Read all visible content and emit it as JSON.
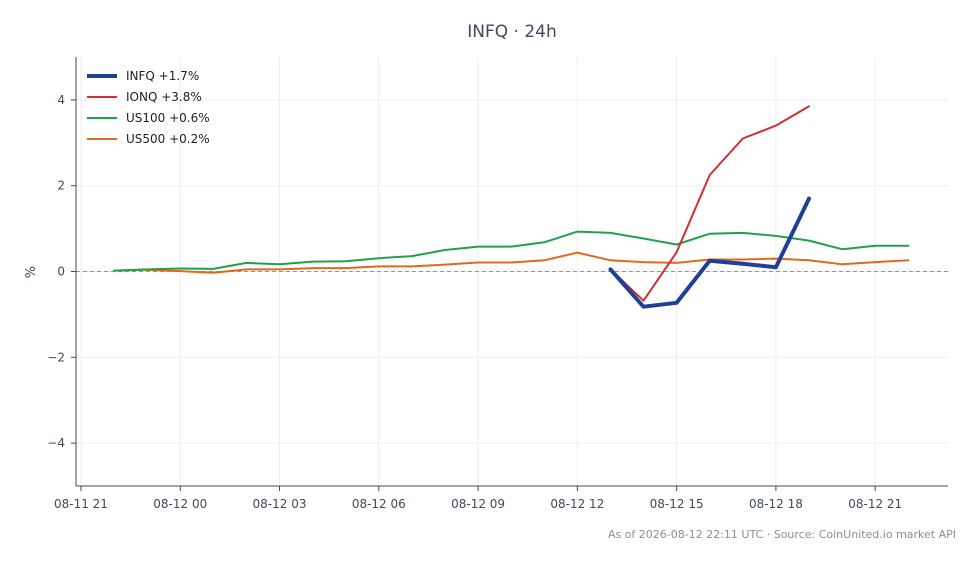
{
  "chart_data": {
    "type": "line",
    "title": "INFQ · 24h",
    "xlabel": "",
    "ylabel": "%",
    "x_unit": "hours since 08-11 21:00",
    "x_ticks": [
      {
        "x": 0,
        "label": "08-11 21"
      },
      {
        "x": 3,
        "label": "08-12 00"
      },
      {
        "x": 6,
        "label": "08-12 03"
      },
      {
        "x": 9,
        "label": "08-12 06"
      },
      {
        "x": 12,
        "label": "08-12 09"
      },
      {
        "x": 15,
        "label": "08-12 12"
      },
      {
        "x": 18,
        "label": "08-12 15"
      },
      {
        "x": 21,
        "label": "08-12 18"
      },
      {
        "x": 24,
        "label": "08-12 21"
      }
    ],
    "y_ticks": [
      {
        "y": -4,
        "label": "−4"
      },
      {
        "y": -2,
        "label": "−2"
      },
      {
        "y": 0,
        "label": "0"
      },
      {
        "y": 2,
        "label": "2"
      },
      {
        "y": 4,
        "label": "4"
      }
    ],
    "xlim": [
      -0.15,
      26.2
    ],
    "ylim": [
      -5.0,
      5.0
    ],
    "grid": true,
    "zero_line": {
      "y": 0,
      "color": "#8a96a8"
    },
    "legend_position": "top-left",
    "series": [
      {
        "name": "INFQ +1.7%",
        "color": "#1f3f99",
        "width": 4,
        "points": [
          [
            16,
            0.05
          ],
          [
            17,
            -0.82
          ],
          [
            18,
            -0.73
          ],
          [
            19,
            0.25
          ],
          [
            20,
            0.18
          ],
          [
            21,
            0.1
          ],
          [
            22,
            1.7
          ]
        ]
      },
      {
        "name": "IONQ +3.8%",
        "color": "#d03030",
        "width": 2,
        "points": [
          [
            16,
            0.05
          ],
          [
            17,
            -0.68
          ],
          [
            18,
            0.45
          ],
          [
            19,
            2.25
          ],
          [
            20,
            3.1
          ],
          [
            21,
            3.4
          ],
          [
            22,
            3.85
          ]
        ]
      },
      {
        "name": "US100 +0.6%",
        "color": "#22a04a",
        "width": 2,
        "points": [
          [
            1,
            0.02
          ],
          [
            2,
            0.05
          ],
          [
            3,
            0.07
          ],
          [
            4,
            0.06
          ],
          [
            5,
            0.2
          ],
          [
            6,
            0.17
          ],
          [
            7,
            0.23
          ],
          [
            8,
            0.24
          ],
          [
            9,
            0.31
          ],
          [
            10,
            0.36
          ],
          [
            11,
            0.5
          ],
          [
            12,
            0.58
          ],
          [
            13,
            0.58
          ],
          [
            14,
            0.68
          ],
          [
            15,
            0.93
          ],
          [
            16,
            0.9
          ],
          [
            17,
            0.77
          ],
          [
            18,
            0.63
          ],
          [
            19,
            0.88
          ],
          [
            20,
            0.9
          ],
          [
            21,
            0.83
          ],
          [
            22,
            0.72
          ],
          [
            23,
            0.52
          ],
          [
            24,
            0.6
          ],
          [
            25,
            0.6
          ]
        ]
      },
      {
        "name": "US500 +0.2%",
        "color": "#e06a1c",
        "width": 2,
        "points": [
          [
            1,
            0.02
          ],
          [
            2,
            0.04
          ],
          [
            3,
            0.01
          ],
          [
            4,
            -0.03
          ],
          [
            5,
            0.05
          ],
          [
            6,
            0.05
          ],
          [
            7,
            0.08
          ],
          [
            8,
            0.08
          ],
          [
            9,
            0.12
          ],
          [
            10,
            0.12
          ],
          [
            11,
            0.16
          ],
          [
            12,
            0.21
          ],
          [
            13,
            0.21
          ],
          [
            14,
            0.26
          ],
          [
            15,
            0.44
          ],
          [
            16,
            0.26
          ],
          [
            17,
            0.22
          ],
          [
            18,
            0.2
          ],
          [
            19,
            0.28
          ],
          [
            20,
            0.28
          ],
          [
            21,
            0.3
          ],
          [
            22,
            0.26
          ],
          [
            23,
            0.17
          ],
          [
            24,
            0.22
          ],
          [
            25,
            0.26
          ]
        ]
      }
    ]
  },
  "footer": "As of 2026-08-12 22:11 UTC · Source: CoinUnited.io market API"
}
